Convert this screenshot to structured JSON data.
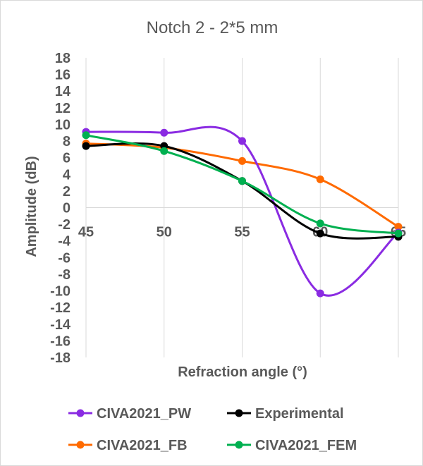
{
  "chart_data": {
    "type": "line",
    "title": "Notch 2 - 2*5 mm",
    "xlabel": "Refraction angle (°)",
    "ylabel": "Amplitude (dB)",
    "x": [
      45,
      50,
      55,
      60,
      65
    ],
    "xlim": [
      45,
      65
    ],
    "ylim": [
      -18,
      18
    ],
    "x_ticks": [
      45,
      50,
      55,
      60,
      65
    ],
    "y_ticks": [
      18,
      16,
      14,
      12,
      10,
      8,
      6,
      4,
      2,
      0,
      -2,
      -4,
      -6,
      -8,
      -10,
      -12,
      -14,
      -16,
      -18
    ],
    "grid": "vertical",
    "legend_position": "bottom",
    "series": [
      {
        "name": "CIVA2021_PW",
        "color": "#8a2be2",
        "values": [
          9.1,
          9.0,
          8.0,
          -10.3,
          -3.0
        ]
      },
      {
        "name": "Experimental",
        "color": "#000000",
        "values": [
          7.4,
          7.4,
          3.2,
          -3.1,
          -3.5
        ]
      },
      {
        "name": "CIVA2021_FB",
        "color": "#ff6a00",
        "values": [
          7.7,
          7.2,
          5.6,
          3.4,
          -2.3
        ]
      },
      {
        "name": "CIVA2021_FEM",
        "color": "#00b050",
        "values": [
          8.7,
          6.8,
          3.2,
          -1.9,
          -3.1
        ]
      }
    ],
    "legend_order": [
      "CIVA2021_PW",
      "Experimental",
      "CIVA2021_FB",
      "CIVA2021_FEM"
    ]
  }
}
